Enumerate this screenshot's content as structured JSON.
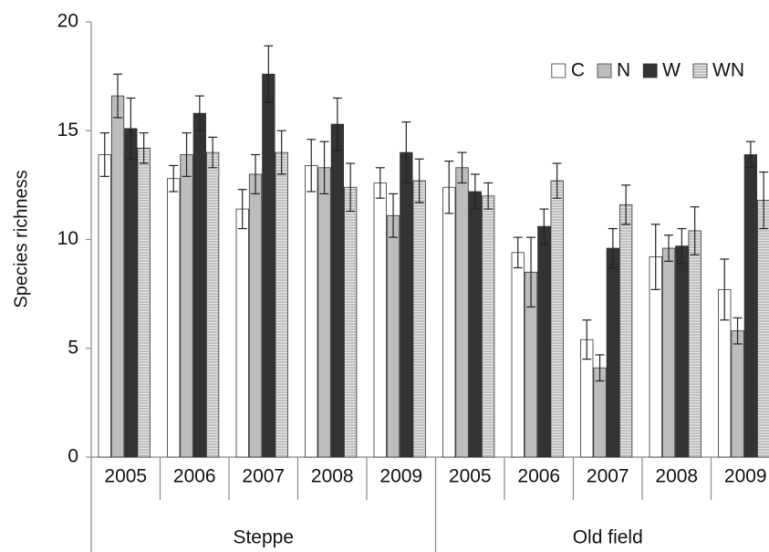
{
  "chart_data": {
    "type": "bar",
    "y_label": "Species richness",
    "groups": [
      {
        "name": "Steppe",
        "categories": [
          "2005",
          "2006",
          "2007",
          "2008",
          "2009"
        ]
      },
      {
        "name": "Old field",
        "categories": [
          "2005",
          "2006",
          "2007",
          "2008",
          "2009"
        ]
      }
    ],
    "series": [
      {
        "name": "C",
        "color": "#ffffff",
        "values": [
          13.9,
          12.8,
          11.4,
          13.4,
          12.6,
          12.4,
          9.4,
          5.4,
          9.2,
          7.7
        ],
        "errors": [
          1.0,
          0.6,
          0.9,
          1.2,
          0.7,
          1.2,
          0.7,
          0.9,
          1.5,
          1.4
        ]
      },
      {
        "name": "N",
        "color": "#bdbdbd",
        "values": [
          16.6,
          13.9,
          13.0,
          13.3,
          11.1,
          13.3,
          8.5,
          4.1,
          9.6,
          5.8
        ],
        "errors": [
          1.0,
          1.0,
          0.9,
          1.2,
          1.0,
          0.7,
          1.6,
          0.6,
          0.6,
          0.6
        ]
      },
      {
        "name": "W",
        "color": "#333333",
        "values": [
          15.1,
          15.8,
          17.6,
          15.3,
          14.0,
          12.2,
          10.6,
          9.6,
          9.7,
          13.9
        ],
        "errors": [
          1.4,
          0.8,
          1.3,
          1.2,
          1.4,
          0.8,
          0.8,
          0.9,
          0.8,
          0.6
        ]
      },
      {
        "name": "WN",
        "color": "#9a9a9a",
        "hatch": "horizontal",
        "values": [
          14.2,
          14.0,
          14.0,
          12.4,
          12.7,
          12.0,
          12.7,
          11.6,
          10.4,
          11.8
        ],
        "errors": [
          0.7,
          0.7,
          1.0,
          1.1,
          1.0,
          0.6,
          0.8,
          0.9,
          1.1,
          1.3
        ]
      }
    ],
    "ylim": [
      0,
      20
    ],
    "yticks": [
      0,
      5,
      10,
      15,
      20
    ],
    "legend": "upper right",
    "grid": false
  }
}
